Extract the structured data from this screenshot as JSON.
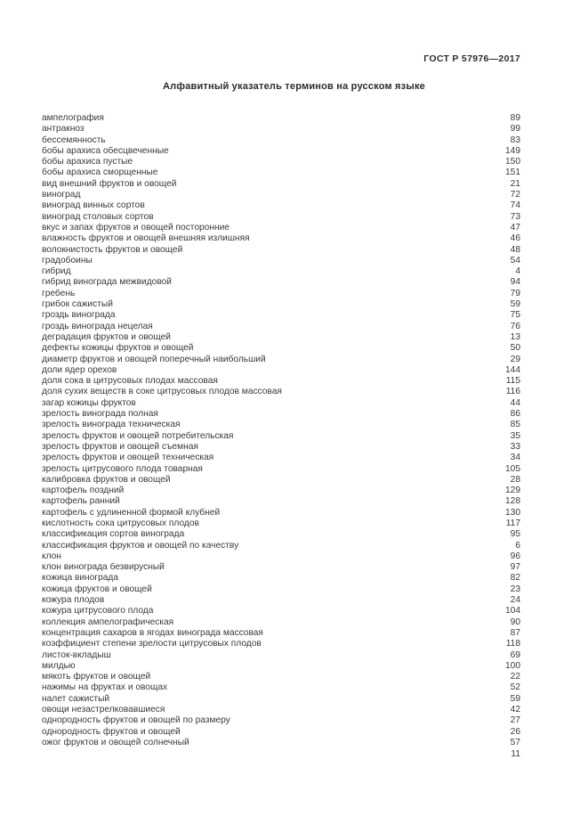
{
  "page": {
    "header_code": "ГОСТ Р 57976—2017",
    "title": "Алфавитный указатель терминов на русском языке",
    "page_number": "11"
  },
  "index": {
    "entries": [
      {
        "term": "ампелография",
        "page": "89"
      },
      {
        "term": "антракноз",
        "page": "99"
      },
      {
        "term": "бессемянность",
        "page": "83"
      },
      {
        "term": "бобы арахиса обесцвеченные",
        "page": "149"
      },
      {
        "term": "бобы арахиса пустые",
        "page": "150"
      },
      {
        "term": "бобы арахиса сморщенные",
        "page": "151"
      },
      {
        "term": "вид внешний фруктов и овощей",
        "page": "21"
      },
      {
        "term": "виноград",
        "page": "72"
      },
      {
        "term": "виноград винных сортов",
        "page": "74"
      },
      {
        "term": "виноград столовых сортов",
        "page": "73"
      },
      {
        "term": "вкус и запах фруктов и овощей посторонние",
        "page": "47"
      },
      {
        "term": "влажность фруктов и овощей внешняя излишняя",
        "page": "46"
      },
      {
        "term": "волокнистость фруктов и овощей",
        "page": "48"
      },
      {
        "term": "градобоины",
        "page": "54"
      },
      {
        "term": "гибрид",
        "page": "4"
      },
      {
        "term": "гибрид винограда межвидовой",
        "page": "94"
      },
      {
        "term": "гребень",
        "page": "79"
      },
      {
        "term": "грибок сажистый",
        "page": "59"
      },
      {
        "term": "гроздь винограда",
        "page": "75"
      },
      {
        "term": "гроздь винограда нецелая",
        "page": "76"
      },
      {
        "term": "деградация фруктов и овощей",
        "page": "13"
      },
      {
        "term": "дефекты кожицы фруктов и овощей",
        "page": "50"
      },
      {
        "term": "диаметр фруктов и овощей поперечный наибольший",
        "page": "29"
      },
      {
        "term": "доли ядер орехов",
        "page": "144"
      },
      {
        "term": "доля сока в цитрусовых плодах массовая",
        "page": "115"
      },
      {
        "term": "доля сухих веществ в соке цитрусовых плодов массовая",
        "page": "116"
      },
      {
        "term": "загар кожицы фруктов",
        "page": "44"
      },
      {
        "term": "зрелость винограда полная",
        "page": "86"
      },
      {
        "term": "зрелость винограда техническая",
        "page": "85"
      },
      {
        "term": "зрелость фруктов и овощей потребительская",
        "page": "35"
      },
      {
        "term": "зрелость фруктов и овощей съемная",
        "page": "33"
      },
      {
        "term": "зрелость фруктов и овощей техническая",
        "page": "34"
      },
      {
        "term": "зрелость цитрусового плода товарная",
        "page": "105"
      },
      {
        "term": "калибровка фруктов и овощей",
        "page": "28"
      },
      {
        "term": "картофель поздний",
        "page": "129"
      },
      {
        "term": "картофель ранний",
        "page": "128"
      },
      {
        "term": "картофель с удлиненной формой клубней",
        "page": "130"
      },
      {
        "term": "кислотность сока цитрусовых плодов",
        "page": "117"
      },
      {
        "term": "классификация сортов винограда",
        "page": "95"
      },
      {
        "term": "классификация фруктов и овощей по качеству",
        "page": "6"
      },
      {
        "term": "клон",
        "page": "96"
      },
      {
        "term": "клон винограда безвирусный",
        "page": "97"
      },
      {
        "term": "кожица винограда",
        "page": "82"
      },
      {
        "term": "кожица фруктов и овощей",
        "page": "23"
      },
      {
        "term": "кожура плодов",
        "page": "24"
      },
      {
        "term": "кожура цитрусового плода",
        "page": "104"
      },
      {
        "term": "коллекция ампелографическая",
        "page": "90"
      },
      {
        "term": "концентрация сахаров в ягодах винограда массовая",
        "page": "87"
      },
      {
        "term": "коэффициент степени зрелости цитрусовых плодов",
        "page": "118"
      },
      {
        "term": "листок-вкладыш",
        "page": "69"
      },
      {
        "term": "милдью",
        "page": "100"
      },
      {
        "term": "мякоть фруктов и овощей",
        "page": "22"
      },
      {
        "term": "нажимы на фруктах и овощах",
        "page": "52"
      },
      {
        "term": "налет сажистый",
        "page": "59"
      },
      {
        "term": "овощи незастрелковавшиеся",
        "page": "42"
      },
      {
        "term": "однородность фруктов и овощей по размеру",
        "page": "27"
      },
      {
        "term": "однородность фруктов и овощей",
        "page": "26"
      },
      {
        "term": "ожог фруктов и овощей солнечный",
        "page": "57"
      }
    ]
  }
}
